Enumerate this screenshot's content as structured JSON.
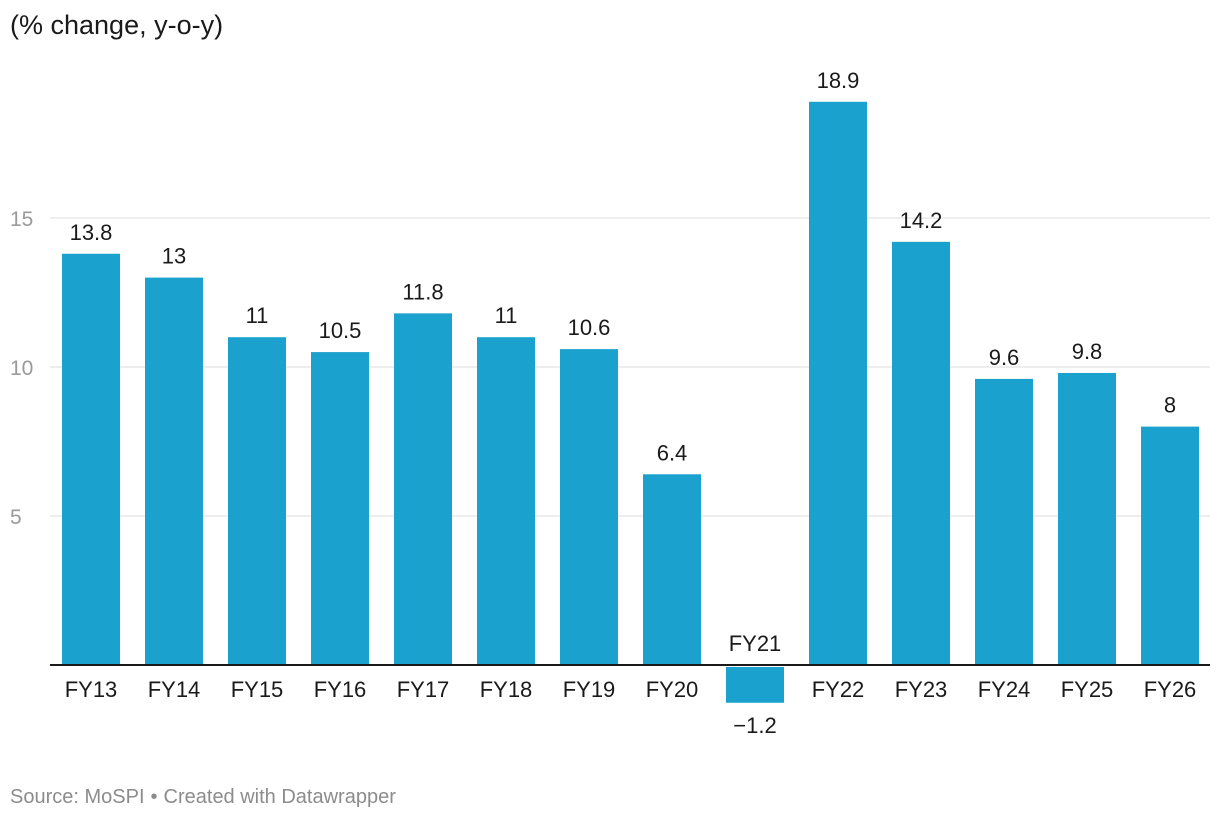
{
  "chart_data": {
    "type": "bar",
    "title": "",
    "unit_label": "(% change, y-o-y)",
    "xlabel": "",
    "ylabel": "",
    "categories": [
      "FY13",
      "FY14",
      "FY15",
      "FY16",
      "FY17",
      "FY18",
      "FY19",
      "FY20",
      "FY21",
      "FY22",
      "FY23",
      "FY24",
      "FY25",
      "FY26"
    ],
    "values": [
      13.8,
      13,
      11,
      10.5,
      11.8,
      11,
      10.6,
      6.4,
      -1.2,
      18.9,
      14.2,
      9.6,
      9.8,
      8
    ],
    "value_labels": [
      "13.8",
      "13",
      "11",
      "10.5",
      "11.8",
      "11",
      "10.6",
      "6.4",
      "−1.2",
      "18.9",
      "14.2",
      "9.6",
      "9.8",
      "8"
    ],
    "yticks": [
      5,
      10,
      15
    ],
    "ytick_labels": [
      "5",
      "10",
      "15"
    ],
    "ylim": [
      -1.2,
      19
    ],
    "grid": true,
    "bar_color": "#1ba1ce"
  },
  "footer": {
    "source": "Source: MoSPI",
    "separator": "•",
    "credit": "Created with Datawrapper"
  }
}
